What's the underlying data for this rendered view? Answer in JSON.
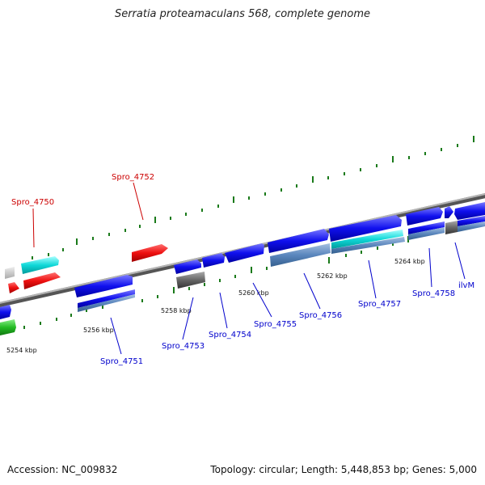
{
  "title": "Serratia proteamaculans 568, complete genome",
  "footer": {
    "accession": "Accession: NC_009832",
    "summary": "Topology: circular; Length: 5,448,853 bp; Genes: 5,000"
  },
  "scale_labels": [
    "5254 kbp",
    "5256 kbp",
    "5258 kbp",
    "5260 kbp",
    "5262 kbp",
    "5264 kbp"
  ],
  "gene_labels": {
    "spro_4750": "Spro_4750",
    "spro_4751": "Spro_4751",
    "spro_4752": "Spro_4752",
    "spro_4753": "Spro_4753",
    "spro_4754": "Spro_4754",
    "spro_4755": "Spro_4755",
    "spro_4756": "Spro_4756",
    "spro_4757": "Spro_4757",
    "spro_4758": "Spro_4758",
    "ilvm": "ilvM"
  },
  "colors": {
    "forward_gene": "#0000ee",
    "reverse_gene": "#ee0000",
    "rna": "#00cccc",
    "pseudo": "#666666",
    "other": "#22aa22",
    "label_blue": "#0000cc",
    "label_red": "#cc0000",
    "tick": "#1a7a1a",
    "backbone": "#888888"
  }
}
